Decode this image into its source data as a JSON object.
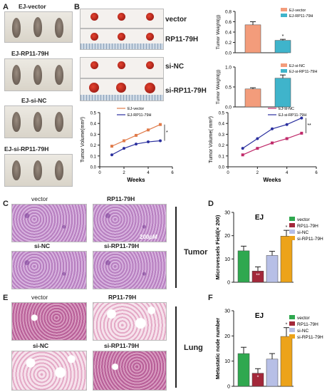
{
  "panels": {
    "A": {
      "letter": "A",
      "labels": [
        "EJ-vector",
        "EJ-RP11-79H",
        "EJ-si-NC",
        "EJ-si-RP11-79H"
      ]
    },
    "B": {
      "letter": "B",
      "row_labels": [
        "vector",
        "RP11-79H",
        "si-NC",
        "si-RP11-79H"
      ]
    },
    "C": {
      "letter": "C",
      "labels": [
        "vector",
        "RP11-79H",
        "si-NC",
        "si-RP11-79H"
      ],
      "side": "Tumor",
      "scale": "200μM"
    },
    "D": {
      "letter": "D"
    },
    "E": {
      "letter": "E",
      "labels": [
        "vector",
        "RP11-79H",
        "si-NC",
        "si-RP11-79H"
      ],
      "side": "Lung"
    },
    "F": {
      "letter": "F"
    }
  },
  "colors": {
    "salmon": "#f39c7b",
    "teal": "#3fb4cb",
    "green": "#2fa84f",
    "darkred": "#a3283a",
    "lavender": "#b7bfe6",
    "orange": "#eca31a",
    "line1": "#e07b4a",
    "line2": "#2a2f9e",
    "line3": "#c02a6a"
  },
  "chart_data": [
    {
      "id": "b_weight1",
      "type": "bar",
      "categories": [
        "EJ-vector",
        "EJ-RP11-79H"
      ],
      "values": [
        0.54,
        0.24
      ],
      "errors": [
        0.06,
        0.02
      ],
      "ylabel": "Tumor Weight(g)",
      "ylim": [
        0,
        0.8
      ],
      "yticks": [
        "0.0",
        "0.2",
        "0.4",
        "0.6",
        "0.8"
      ],
      "sig": [
        "",
        "*"
      ],
      "legend": [
        "EJ-vector",
        "EJ-RP11-79H"
      ]
    },
    {
      "id": "b_weight2",
      "type": "bar",
      "categories": [
        "EJ-si-NC",
        "EJ-si-RP11-79H"
      ],
      "values": [
        0.45,
        0.72
      ],
      "errors": [
        0.03,
        0.08
      ],
      "ylabel": "Tumor Weight(g)",
      "ylim": [
        0,
        1.0
      ],
      "yticks": [
        "0.0",
        "0.5",
        "1.0"
      ],
      "sig": [
        "",
        "*"
      ],
      "legend": [
        "EJ-si-NC",
        "EJ-si-RP11-79H"
      ]
    },
    {
      "id": "b_vol1",
      "type": "line",
      "x": [
        1,
        2,
        3,
        4,
        5
      ],
      "xlabel": "Weeks",
      "ylabel": "Tumor Volume(mm³)",
      "ylim": [
        0,
        0.5
      ],
      "xlim": [
        0,
        6
      ],
      "xticks": [
        "0",
        "2",
        "4",
        "6"
      ],
      "yticks": [
        "0.0",
        "0.1",
        "0.2",
        "0.3",
        "0.4",
        "0.5"
      ],
      "series": [
        {
          "name": "EJ-vector",
          "values": [
            0.19,
            0.24,
            0.29,
            0.34,
            0.39
          ]
        },
        {
          "name": "EJ-RP11-79H",
          "values": [
            0.11,
            0.17,
            0.21,
            0.23,
            0.24
          ]
        }
      ],
      "sig": "*"
    },
    {
      "id": "b_vol2",
      "type": "line",
      "x": [
        1,
        2,
        3,
        4,
        5
      ],
      "xlabel": "Weeks",
      "ylabel": "Tumor Volume( mm³)",
      "ylim": [
        0,
        0.5
      ],
      "xlim": [
        0,
        6
      ],
      "xticks": [
        "0",
        "2",
        "4",
        "6"
      ],
      "yticks": [
        "0.0",
        "0.1",
        "0.2",
        "0.3",
        "0.4",
        "0.5"
      ],
      "series": [
        {
          "name": "EJ-si-NC",
          "values": [
            0.11,
            0.17,
            0.22,
            0.26,
            0.31
          ]
        },
        {
          "name": "EJ-si-RP11-79H",
          "values": [
            0.17,
            0.26,
            0.35,
            0.39,
            0.45
          ]
        }
      ],
      "sig": "**"
    },
    {
      "id": "d_micro",
      "type": "bar",
      "title": "EJ",
      "categories": [
        "vector",
        "RP11-79H",
        "si-NC",
        "si-RP11-79H"
      ],
      "values": [
        13.5,
        4.8,
        11.5,
        19.8
      ],
      "errors": [
        2,
        1.8,
        1.8,
        2.5
      ],
      "ylabel": "Microvessels Field(× 200)",
      "ylim": [
        0,
        30
      ],
      "yticks": [
        "0",
        "10",
        "20",
        "30"
      ],
      "sig": [
        "",
        "**",
        "",
        "*"
      ],
      "legend": [
        "vector",
        "RP11-79H",
        "si-NC",
        "si-RP11-79H"
      ]
    },
    {
      "id": "f_meta",
      "type": "bar",
      "title": "EJ",
      "categories": [
        "vector",
        "RP11-79H",
        "si-NC",
        "si-RP11-79H"
      ],
      "values": [
        13,
        5.2,
        10.8,
        19.8
      ],
      "errors": [
        2.5,
        1.8,
        2.2,
        3.5
      ],
      "ylabel": "Metastatic node number",
      "ylim": [
        0,
        30
      ],
      "yticks": [
        "0",
        "10",
        "20",
        "30"
      ],
      "sig": [
        "",
        "*",
        "",
        "*"
      ],
      "legend": [
        "vector",
        "RP11-79H",
        "si-NC",
        "si-RP11-79H"
      ]
    }
  ]
}
